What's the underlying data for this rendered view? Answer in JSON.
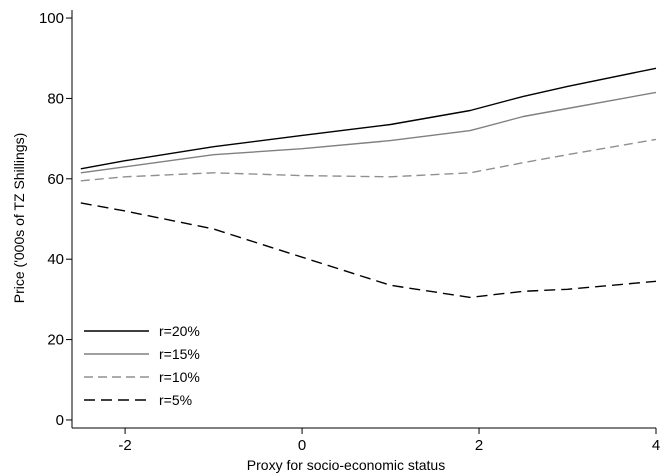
{
  "chart_data": {
    "type": "line",
    "title": "",
    "xlabel": "Proxy for socio-economic status",
    "ylabel": "Price ('000s of TZ Shillings)",
    "xlim": [
      -2.6,
      4.0
    ],
    "ylim": [
      -2,
      102
    ],
    "xticks": [
      -2,
      0,
      2,
      4
    ],
    "yticks": [
      0,
      20,
      40,
      60,
      80,
      100
    ],
    "grid": false,
    "legend_position": "bottom-left",
    "series": [
      {
        "name": "r=20%",
        "color": "#000000",
        "dash": "solid",
        "x": [
          -2.5,
          -2,
          -1,
          0,
          1,
          1.9,
          2.5,
          3,
          4
        ],
        "y": [
          62.5,
          64.5,
          68,
          70.8,
          73.5,
          77,
          80.5,
          83,
          87.5
        ]
      },
      {
        "name": "r=15%",
        "color": "#808080",
        "dash": "solid",
        "x": [
          -2.5,
          -2,
          -1,
          0,
          1,
          1.9,
          2.5,
          3,
          4
        ],
        "y": [
          61.5,
          63,
          66,
          67.5,
          69.5,
          72,
          75.5,
          77.5,
          81.5
        ]
      },
      {
        "name": "r=10%",
        "color": "#909090",
        "dash": "medium",
        "x": [
          -2.5,
          -2,
          -1,
          0,
          1,
          1.9,
          2.5,
          3,
          4
        ],
        "y": [
          59.5,
          60.5,
          61.5,
          60.8,
          60.5,
          61.5,
          64,
          66,
          69.8
        ]
      },
      {
        "name": "r=5%",
        "color": "#000000",
        "dash": "long",
        "x": [
          -2.5,
          -2,
          -1,
          0,
          1,
          1.9,
          2.5,
          3,
          4
        ],
        "y": [
          54,
          52,
          47.5,
          40.5,
          33.5,
          30.5,
          32,
          32.5,
          34.5
        ]
      }
    ]
  }
}
